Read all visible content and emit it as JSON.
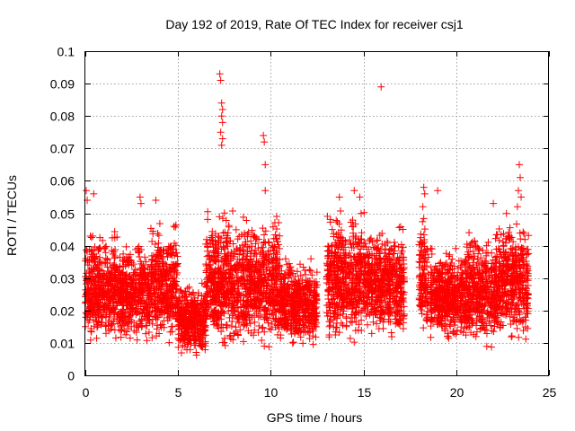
{
  "chart_data": {
    "type": "scatter",
    "title": "Day 192 of 2019, Rate Of TEC Index for receiver csj1",
    "xlabel": "GPS time / hours",
    "ylabel": "ROTI / TECUs",
    "xlim": [
      0,
      25
    ],
    "ylim": [
      0,
      0.1
    ],
    "x_ticks": [
      0,
      5,
      10,
      15,
      20,
      25
    ],
    "x_tick_labels": [
      "0",
      "5",
      "10",
      "15",
      "20",
      "25"
    ],
    "y_ticks": [
      0,
      0.01,
      0.02,
      0.03,
      0.04,
      0.05,
      0.06,
      0.07,
      0.08,
      0.09,
      0.1
    ],
    "y_tick_labels": [
      "0",
      "0.01",
      "0.02",
      "0.03",
      "0.04",
      "0.05",
      "0.06",
      "0.07",
      "0.08",
      "0.09",
      "0.1"
    ],
    "grid": true,
    "marker": "+",
    "color": "#ff0000",
    "series": [
      {
        "name": "ROTI",
        "segments": [
          {
            "x_start": 0.0,
            "x_end": 1.8,
            "y_min": 0.009,
            "y_max": 0.045
          },
          {
            "x_start": 1.8,
            "x_end": 3.5,
            "y_min": 0.009,
            "y_max": 0.043
          },
          {
            "x_start": 3.5,
            "x_end": 5.0,
            "y_min": 0.009,
            "y_max": 0.048
          },
          {
            "x_start": 5.0,
            "x_end": 6.5,
            "y_min": 0.005,
            "y_max": 0.03
          },
          {
            "x_start": 6.5,
            "x_end": 8.5,
            "y_min": 0.007,
            "y_max": 0.052
          },
          {
            "x_start": 8.5,
            "x_end": 10.5,
            "y_min": 0.008,
            "y_max": 0.05
          },
          {
            "x_start": 10.5,
            "x_end": 12.5,
            "y_min": 0.008,
            "y_max": 0.038
          },
          {
            "x_start": 13.0,
            "x_end": 15.2,
            "y_min": 0.009,
            "y_max": 0.052
          },
          {
            "x_start": 15.2,
            "x_end": 17.2,
            "y_min": 0.01,
            "y_max": 0.048
          },
          {
            "x_start": 18.0,
            "x_end": 18.5,
            "y_min": 0.012,
            "y_max": 0.05
          },
          {
            "x_start": 18.6,
            "x_end": 20.5,
            "y_min": 0.01,
            "y_max": 0.04
          },
          {
            "x_start": 20.5,
            "x_end": 22.5,
            "y_min": 0.008,
            "y_max": 0.046
          },
          {
            "x_start": 22.5,
            "x_end": 23.9,
            "y_min": 0.009,
            "y_max": 0.052
          }
        ],
        "peaks": [
          {
            "x": 0.05,
            "y": 0.057
          },
          {
            "x": 0.1,
            "y": 0.054
          },
          {
            "x": 0.45,
            "y": 0.056
          },
          {
            "x": 2.95,
            "y": 0.055
          },
          {
            "x": 3.0,
            "y": 0.053
          },
          {
            "x": 3.8,
            "y": 0.054
          },
          {
            "x": 7.25,
            "y": 0.093
          },
          {
            "x": 7.3,
            "y": 0.091
          },
          {
            "x": 7.35,
            "y": 0.084
          },
          {
            "x": 7.4,
            "y": 0.082
          },
          {
            "x": 7.35,
            "y": 0.08
          },
          {
            "x": 7.4,
            "y": 0.078
          },
          {
            "x": 7.3,
            "y": 0.075
          },
          {
            "x": 7.4,
            "y": 0.073
          },
          {
            "x": 7.35,
            "y": 0.071
          },
          {
            "x": 9.6,
            "y": 0.074
          },
          {
            "x": 9.65,
            "y": 0.072
          },
          {
            "x": 9.7,
            "y": 0.065
          },
          {
            "x": 9.7,
            "y": 0.057
          },
          {
            "x": 13.7,
            "y": 0.055
          },
          {
            "x": 14.5,
            "y": 0.057
          },
          {
            "x": 14.8,
            "y": 0.055
          },
          {
            "x": 15.95,
            "y": 0.089
          },
          {
            "x": 18.25,
            "y": 0.058
          },
          {
            "x": 18.3,
            "y": 0.056
          },
          {
            "x": 18.2,
            "y": 0.052
          },
          {
            "x": 19.0,
            "y": 0.057
          },
          {
            "x": 22.0,
            "y": 0.053
          },
          {
            "x": 23.4,
            "y": 0.065
          },
          {
            "x": 23.45,
            "y": 0.061
          },
          {
            "x": 23.35,
            "y": 0.057
          },
          {
            "x": 23.5,
            "y": 0.055
          },
          {
            "x": 23.3,
            "y": 0.052
          }
        ]
      }
    ]
  }
}
